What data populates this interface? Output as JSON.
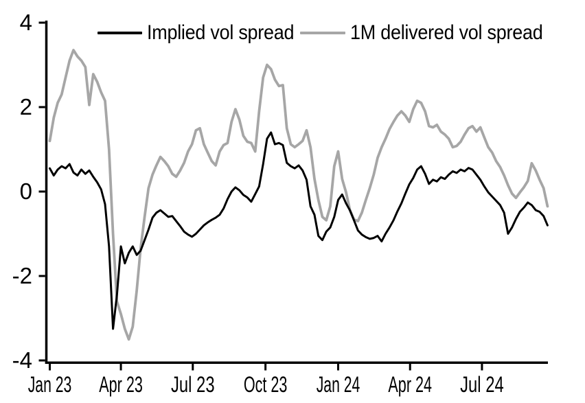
{
  "legend": {
    "items": [
      {
        "label": "Implied vol spread",
        "color": "#000000"
      },
      {
        "label": "1M delivered vol spread",
        "color": "#a6a6a6"
      }
    ]
  },
  "chart_data": {
    "type": "line",
    "grid": false,
    "legend_position": "top-inside",
    "background": "#ffffff",
    "x_axis": {
      "start_date": "2023-01-01",
      "end_date": "2024-09-22",
      "interval_days": 5,
      "tick_labels": [
        {
          "day_offset": 0,
          "label": "Jan 23"
        },
        {
          "day_offset": 90,
          "label": "Apr 23"
        },
        {
          "day_offset": 181,
          "label": "Jul 23"
        },
        {
          "day_offset": 273,
          "label": "Oct 23"
        },
        {
          "day_offset": 365,
          "label": "Jan 24"
        },
        {
          "day_offset": 456,
          "label": "Apr 24"
        },
        {
          "day_offset": 547,
          "label": "Jul 24"
        }
      ]
    },
    "y_axis": {
      "ticks": [
        4,
        2,
        0,
        -2,
        -4
      ],
      "range": [
        -4,
        4
      ]
    },
    "series": [
      {
        "name": "Implied vol spread",
        "color": "#000000",
        "width": 3,
        "values": [
          0.55,
          0.38,
          0.52,
          0.6,
          0.55,
          0.65,
          0.45,
          0.38,
          0.52,
          0.42,
          0.5,
          0.35,
          0.22,
          0.05,
          -0.3,
          -1.3,
          -3.25,
          -2.45,
          -1.3,
          -1.7,
          -1.45,
          -1.3,
          -1.5,
          -1.4,
          -1.15,
          -0.9,
          -0.62,
          -0.5,
          -0.44,
          -0.52,
          -0.6,
          -0.58,
          -0.7,
          -0.82,
          -0.95,
          -1.02,
          -1.07,
          -1.0,
          -0.9,
          -0.8,
          -0.73,
          -0.67,
          -0.62,
          -0.55,
          -0.4,
          -0.18,
          0.0,
          0.1,
          0.03,
          -0.08,
          -0.14,
          -0.24,
          -0.06,
          0.12,
          0.65,
          1.25,
          1.4,
          1.12,
          1.15,
          1.1,
          0.68,
          0.6,
          0.55,
          0.62,
          0.5,
          0.28,
          -0.35,
          -0.55,
          -1.05,
          -1.15,
          -0.95,
          -0.85,
          -0.6,
          -0.2,
          -0.07,
          -0.28,
          -0.45,
          -0.68,
          -0.92,
          -1.02,
          -1.08,
          -1.12,
          -1.1,
          -1.05,
          -1.18,
          -1.0,
          -0.85,
          -0.68,
          -0.47,
          -0.28,
          -0.05,
          0.17,
          0.32,
          0.52,
          0.6,
          0.42,
          0.18,
          0.28,
          0.24,
          0.34,
          0.3,
          0.4,
          0.48,
          0.44,
          0.52,
          0.48,
          0.56,
          0.52,
          0.4,
          0.28,
          0.12,
          -0.02,
          -0.12,
          -0.22,
          -0.32,
          -0.5,
          -1.0,
          -0.85,
          -0.65,
          -0.48,
          -0.38,
          -0.26,
          -0.32,
          -0.44,
          -0.48,
          -0.58,
          -0.8
        ]
      },
      {
        "name": "1M delivered vol spread",
        "color": "#a6a6a6",
        "width": 3.8,
        "values": [
          1.2,
          1.75,
          2.1,
          2.3,
          2.7,
          3.1,
          3.35,
          3.2,
          3.1,
          2.95,
          2.05,
          2.78,
          2.6,
          2.35,
          2.15,
          1.0,
          -1.0,
          -2.6,
          -2.9,
          -3.25,
          -3.5,
          -3.2,
          -2.35,
          -1.35,
          -0.6,
          0.08,
          0.4,
          0.62,
          0.82,
          0.72,
          0.6,
          0.42,
          0.35,
          0.5,
          0.68,
          0.95,
          1.12,
          1.45,
          1.5,
          1.12,
          0.92,
          0.72,
          0.62,
          0.95,
          1.1,
          1.15,
          1.65,
          1.95,
          1.7,
          1.32,
          1.18,
          1.15,
          0.95,
          1.9,
          2.7,
          3.0,
          2.9,
          2.65,
          2.5,
          2.52,
          1.5,
          1.12,
          1.05,
          1.12,
          1.2,
          1.45,
          1.05,
          0.3,
          -0.2,
          -0.6,
          -0.68,
          -0.35,
          0.6,
          0.95,
          0.3,
          -0.02,
          -0.45,
          -0.66,
          -0.7,
          -0.5,
          -0.2,
          0.08,
          0.4,
          0.8,
          1.05,
          1.25,
          1.48,
          1.65,
          1.8,
          1.9,
          1.8,
          1.65,
          1.95,
          2.15,
          2.1,
          1.9,
          1.55,
          1.52,
          1.58,
          1.42,
          1.35,
          1.25,
          1.05,
          1.08,
          1.18,
          1.35,
          1.5,
          1.55,
          1.42,
          1.52,
          1.28,
          1.05,
          0.92,
          0.72,
          0.58,
          0.38,
          0.15,
          -0.05,
          -0.15,
          -0.02,
          0.1,
          0.25,
          0.67,
          0.5,
          0.28,
          0.08,
          -0.35
        ]
      }
    ]
  }
}
